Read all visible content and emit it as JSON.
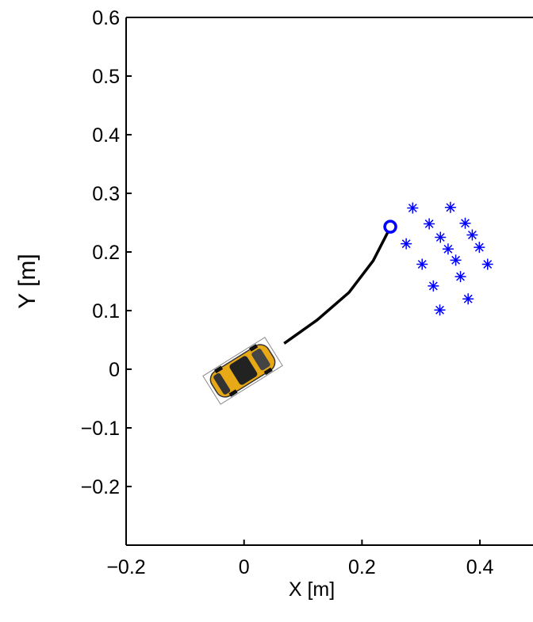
{
  "chart_data": {
    "type": "scatter",
    "xlabel": "X [m]",
    "ylabel": "Y [m]",
    "xlim": [
      -0.2,
      0.49
    ],
    "ylim": [
      -0.3,
      0.6
    ],
    "xticks": [
      {
        "value": -0.2,
        "label": "−0.2"
      },
      0,
      0.2,
      0.4
    ],
    "yticks": [
      {
        "value": -0.2,
        "label": "−0.2"
      },
      {
        "value": -0.1,
        "label": "−0.1"
      },
      0,
      0.1,
      0.2,
      0.3,
      0.4,
      0.5,
      0.6
    ],
    "series": [
      {
        "kind": "line",
        "color": "#000000",
        "x": [
          0.068,
          0.124,
          0.178,
          0.219,
          0.245
        ],
        "y": [
          0.044,
          0.084,
          0.131,
          0.185,
          0.236
        ]
      },
      {
        "kind": "marker",
        "marker": "asterisk",
        "color": "#0000ff",
        "x": [
          0.286,
          0.35,
          0.314,
          0.375,
          0.275,
          0.333,
          0.387,
          0.346,
          0.399,
          0.302,
          0.359,
          0.413,
          0.321,
          0.367,
          0.332,
          0.38
        ],
        "y": [
          0.275,
          0.276,
          0.248,
          0.249,
          0.214,
          0.225,
          0.229,
          0.205,
          0.208,
          0.179,
          0.186,
          0.179,
          0.142,
          0.158,
          0.101,
          0.12
        ]
      },
      {
        "kind": "marker",
        "marker": "circle",
        "color": "#0000ff",
        "x": [
          0.248
        ],
        "y": [
          0.243
        ]
      }
    ]
  }
}
